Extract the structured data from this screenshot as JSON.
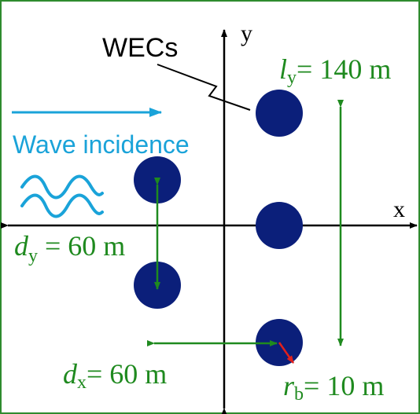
{
  "colors": {
    "frame": "#2e8b2e",
    "buoy": "#0b1f7a",
    "axis": "#000000",
    "dimension": "#1f8a1f",
    "wave": "#1aa3d9",
    "radius": "#e0201c"
  },
  "labels": {
    "wecs": "WECs",
    "axis_x": "x",
    "axis_y": "y",
    "wave_incidence": "Wave incidence"
  },
  "dimensions": {
    "ly": {
      "symbol": "l",
      "sub": "y",
      "value": "= 140 m"
    },
    "dy": {
      "symbol": "d",
      "sub": "y",
      "value": " = 60 m"
    },
    "dx": {
      "symbol": "d",
      "sub": "x",
      "value": "= 60 m"
    },
    "rb": {
      "symbol": "r",
      "sub": "b",
      "value": "= 10 m"
    }
  },
  "icons": {
    "wave": "wave-icon",
    "incidence_arrow": "arrow-right-icon"
  }
}
